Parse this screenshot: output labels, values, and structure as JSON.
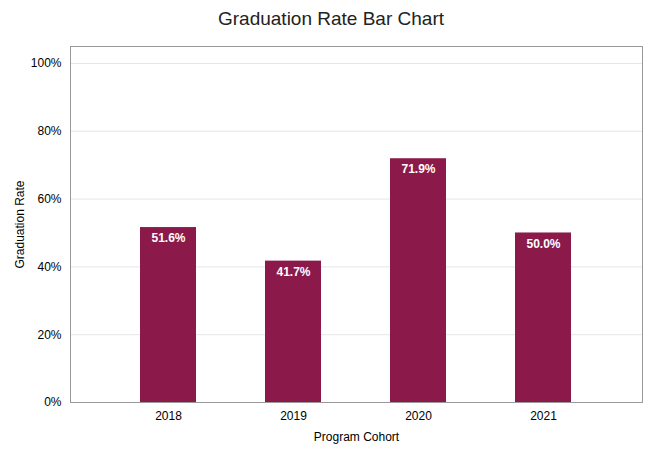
{
  "chart_data": {
    "type": "bar",
    "title": "Graduation Rate Bar Chart",
    "xlabel": "Program Cohort",
    "ylabel": "Graduation Rate",
    "categories": [
      "2018",
      "2019",
      "2020",
      "2021"
    ],
    "values": [
      51.6,
      41.7,
      71.9,
      50.0
    ],
    "value_labels": [
      "51.6%",
      "41.7%",
      "71.9%",
      "50.0%"
    ],
    "data_labels": true,
    "color": "#8B1A4A",
    "ylim": [
      0,
      105
    ],
    "yticks": [
      {
        "value": 0,
        "label": "0%"
      },
      {
        "value": 20,
        "label": "20%"
      },
      {
        "value": 40,
        "label": "40%"
      },
      {
        "value": 60,
        "label": "60%"
      },
      {
        "value": 80,
        "label": "80%"
      },
      {
        "value": 100,
        "label": "100%"
      }
    ],
    "grid": true
  }
}
